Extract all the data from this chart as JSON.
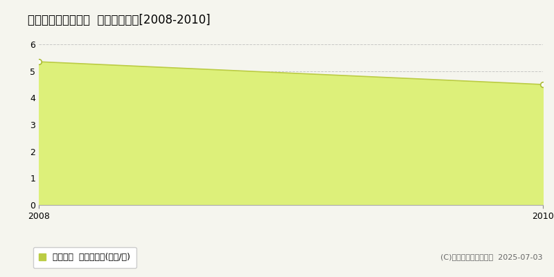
{
  "title": "東津軽郡平内町中野  土地価格推移[2008-2010]",
  "x_values": [
    2008,
    2010
  ],
  "y_values": [
    5.35,
    4.5
  ],
  "xlim": [
    2008,
    2010
  ],
  "ylim": [
    0,
    6
  ],
  "yticks": [
    0,
    1,
    2,
    3,
    4,
    5,
    6
  ],
  "xticks": [
    2008,
    2010
  ],
  "line_color": "#bbcc44",
  "fill_color": "#ddf07a",
  "fill_alpha": 1.0,
  "marker_facecolor": "#ffffff",
  "marker_edgecolor": "#aabb33",
  "grid_color": "#bbbbbb",
  "background_color": "#f5f5ee",
  "plot_bg_color": "#f5f5ee",
  "legend_label": "土地価格  平均坪単価(万円/坪)",
  "legend_marker_color": "#bbcc44",
  "copyright_text": "(C)土地価格ドットコム  2025-07-03",
  "title_fontsize": 12,
  "axis_fontsize": 9,
  "legend_fontsize": 9,
  "copyright_fontsize": 8
}
